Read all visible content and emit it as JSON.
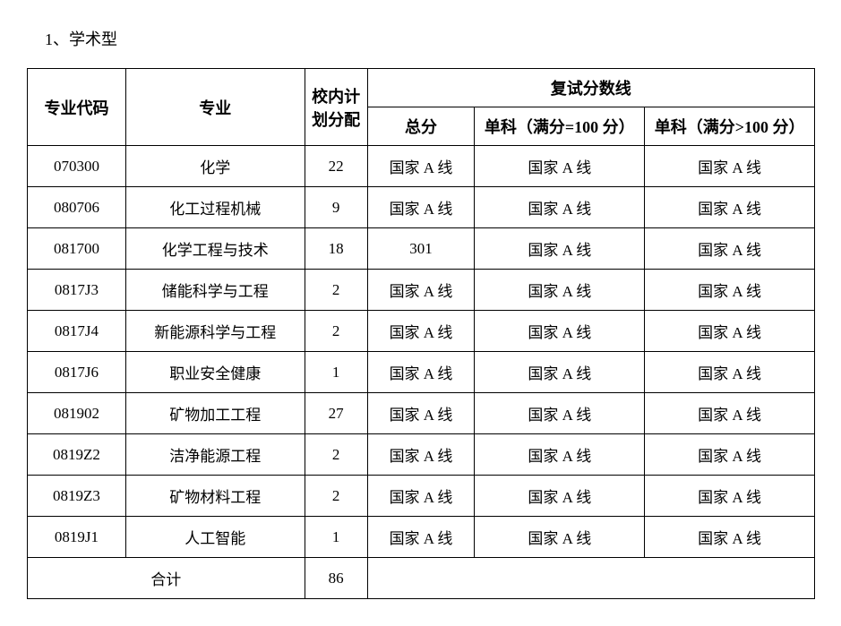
{
  "title": "1、学术型",
  "table": {
    "headers": {
      "code": "专业代码",
      "major": "专业",
      "plan": "校内计划分配",
      "score_group": "复试分数线",
      "total": "总分",
      "sub1": "单科（满分=100 分）",
      "sub2": "单科（满分>100 分）"
    },
    "rows": [
      {
        "code": "070300",
        "major": "化学",
        "plan": "22",
        "total": "国家 A 线",
        "sub1": "国家 A 线",
        "sub2": "国家 A 线"
      },
      {
        "code": "080706",
        "major": "化工过程机械",
        "plan": "9",
        "total": "国家 A 线",
        "sub1": "国家 A 线",
        "sub2": "国家 A 线"
      },
      {
        "code": "081700",
        "major": "化学工程与技术",
        "plan": "18",
        "total": "301",
        "sub1": "国家 A 线",
        "sub2": "国家 A 线"
      },
      {
        "code": "0817J3",
        "major": "储能科学与工程",
        "plan": "2",
        "total": "国家 A 线",
        "sub1": "国家 A 线",
        "sub2": "国家 A 线"
      },
      {
        "code": "0817J4",
        "major": "新能源科学与工程",
        "plan": "2",
        "total": "国家 A 线",
        "sub1": "国家 A 线",
        "sub2": "国家 A 线"
      },
      {
        "code": "0817J6",
        "major": "职业安全健康",
        "plan": "1",
        "total": "国家 A 线",
        "sub1": "国家 A 线",
        "sub2": "国家 A 线"
      },
      {
        "code": "081902",
        "major": "矿物加工工程",
        "plan": "27",
        "total": "国家 A 线",
        "sub1": "国家 A 线",
        "sub2": "国家 A 线"
      },
      {
        "code": "0819Z2",
        "major": "洁净能源工程",
        "plan": "2",
        "total": "国家 A 线",
        "sub1": "国家 A 线",
        "sub2": "国家 A 线"
      },
      {
        "code": "0819Z3",
        "major": "矿物材料工程",
        "plan": "2",
        "total": "国家 A 线",
        "sub1": "国家 A 线",
        "sub2": "国家 A 线"
      },
      {
        "code": "0819J1",
        "major": "人工智能",
        "plan": "1",
        "total": "国家 A 线",
        "sub1": "国家 A 线",
        "sub2": "国家 A 线"
      }
    ],
    "total_row": {
      "label": "合计",
      "plan": "86"
    },
    "styles": {
      "border_color": "#000000",
      "background_color": "#ffffff",
      "text_color": "#000000",
      "font_family": "SimSun",
      "header_fontsize": 18,
      "cell_fontsize": 17,
      "col_widths": {
        "code": 110,
        "major": 200,
        "plan": 70,
        "total": 120,
        "sub": 190
      }
    }
  }
}
